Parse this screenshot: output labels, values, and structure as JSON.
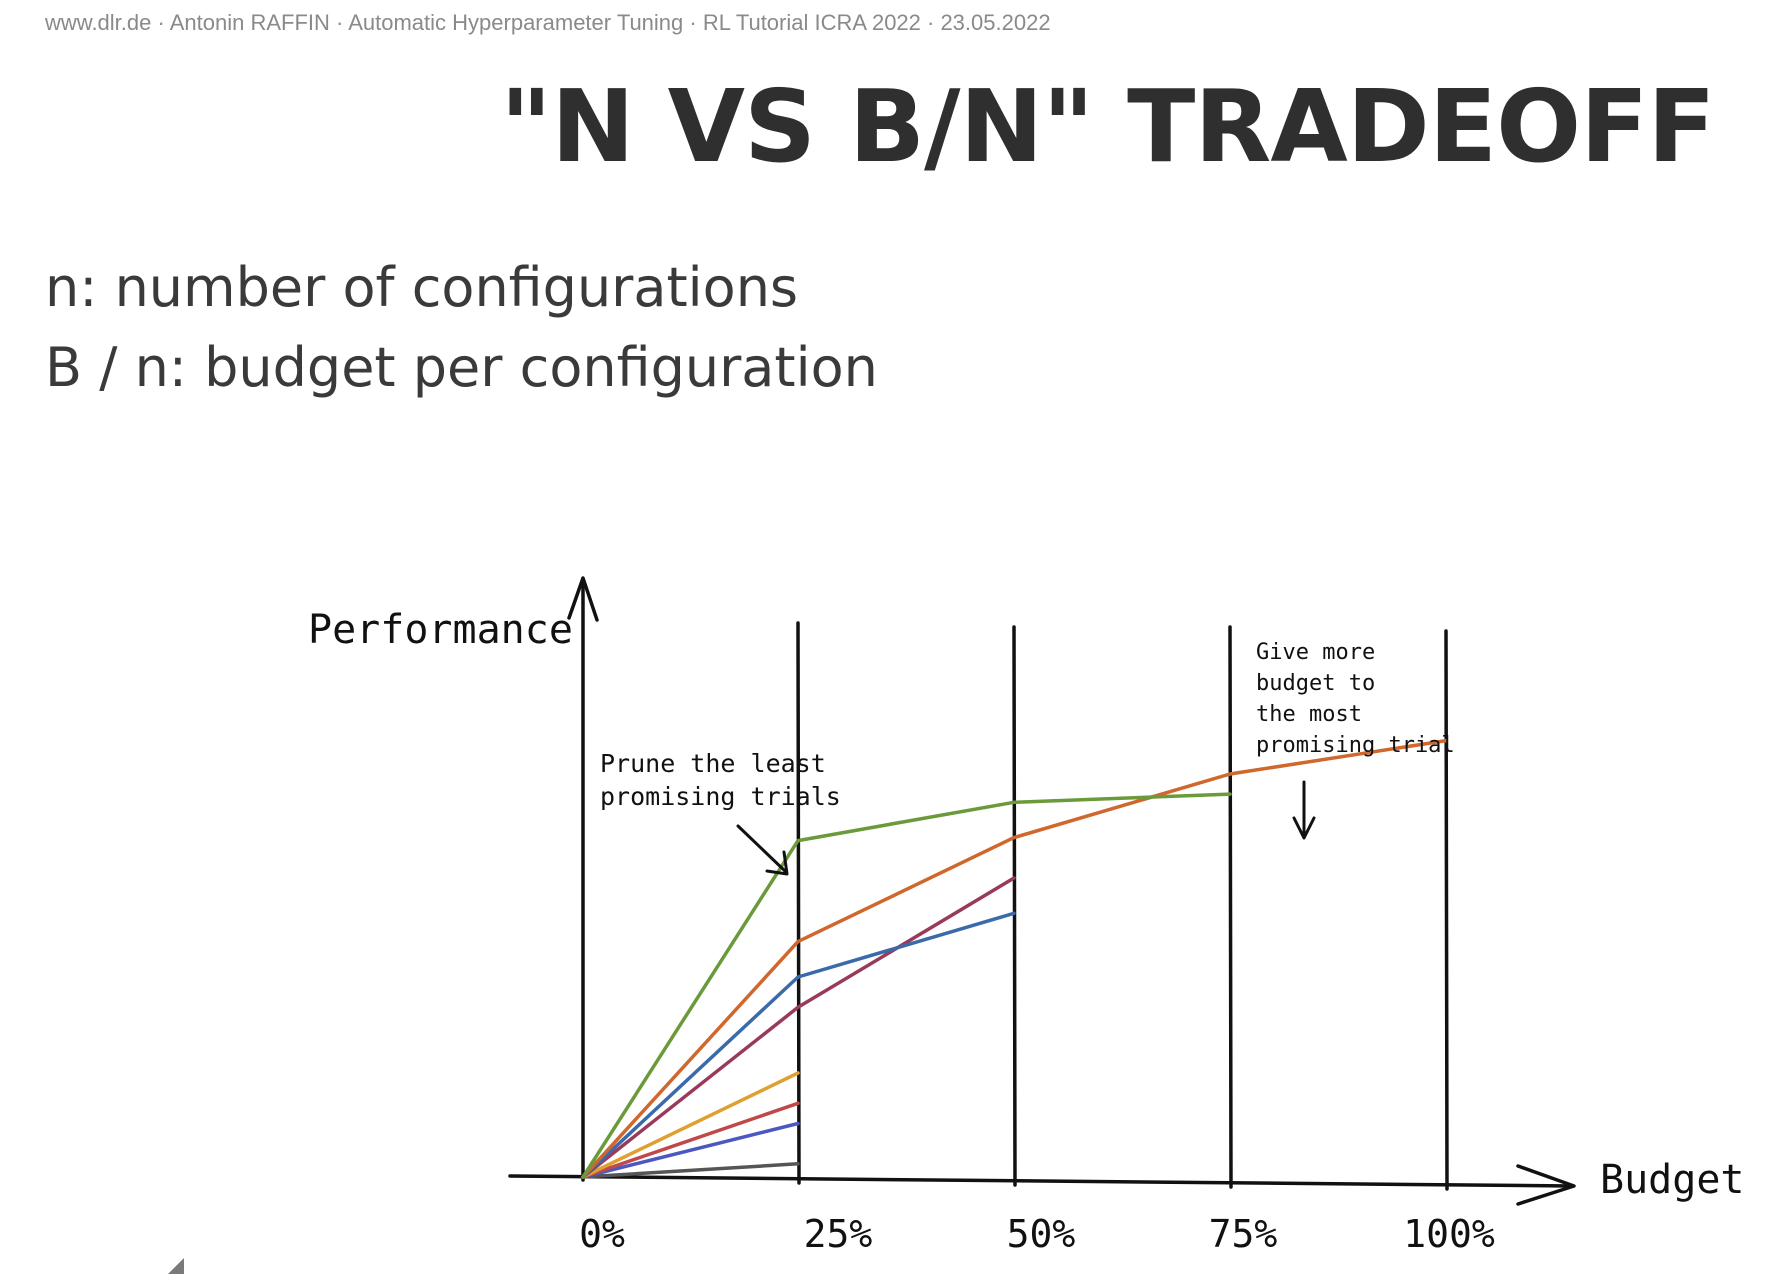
{
  "header": {
    "text": "www.dlr.de · Antonin RAFFIN · Automatic Hyperparameter Tuning · RL Tutorial ICRA 2022 · 23.05.2022"
  },
  "slide": {
    "title": "\"N VS B/N\" TRADEOFF",
    "definitions": [
      "n: number of configurations",
      "B / n: budget per configuration"
    ]
  },
  "diagram": {
    "y_axis_label": "Performance",
    "x_axis_label": "Budget",
    "x_ticks": [
      "0%",
      "25%",
      "50%",
      "75%",
      "100%"
    ],
    "annotation_prune": [
      "Prune the least",
      "promising trials"
    ],
    "annotation_budget": [
      "Give more",
      "budget to",
      "the most",
      "promising trial"
    ]
  },
  "chart_data": {
    "type": "line",
    "xlabel": "Budget",
    "ylabel": "Performance",
    "x": [
      0,
      25,
      50,
      75,
      100
    ],
    "series": [
      {
        "color": "#6a9a3a",
        "points": [
          [
            0,
            0
          ],
          [
            25,
            0.67
          ],
          [
            50,
            0.75
          ],
          [
            75,
            0.77
          ]
        ]
      },
      {
        "color": "#d0672c",
        "points": [
          [
            0,
            0
          ],
          [
            25,
            0.47
          ],
          [
            50,
            0.68
          ],
          [
            75,
            0.81
          ],
          [
            100,
            0.88
          ]
        ]
      },
      {
        "color": "#3a6aaa",
        "points": [
          [
            0,
            0
          ],
          [
            25,
            0.4
          ],
          [
            50,
            0.53
          ]
        ]
      },
      {
        "color": "#9a3a5a",
        "points": [
          [
            0,
            0
          ],
          [
            25,
            0.34
          ],
          [
            50,
            0.6
          ]
        ]
      },
      {
        "color": "#e0a030",
        "points": [
          [
            0,
            0
          ],
          [
            25,
            0.21
          ]
        ]
      },
      {
        "color": "#c04848",
        "points": [
          [
            0,
            0
          ],
          [
            25,
            0.15
          ]
        ]
      },
      {
        "color": "#4a58c0",
        "points": [
          [
            0,
            0
          ],
          [
            25,
            0.11
          ]
        ]
      },
      {
        "color": "#555555",
        "points": [
          [
            0,
            0
          ],
          [
            25,
            0.03
          ]
        ]
      }
    ]
  }
}
